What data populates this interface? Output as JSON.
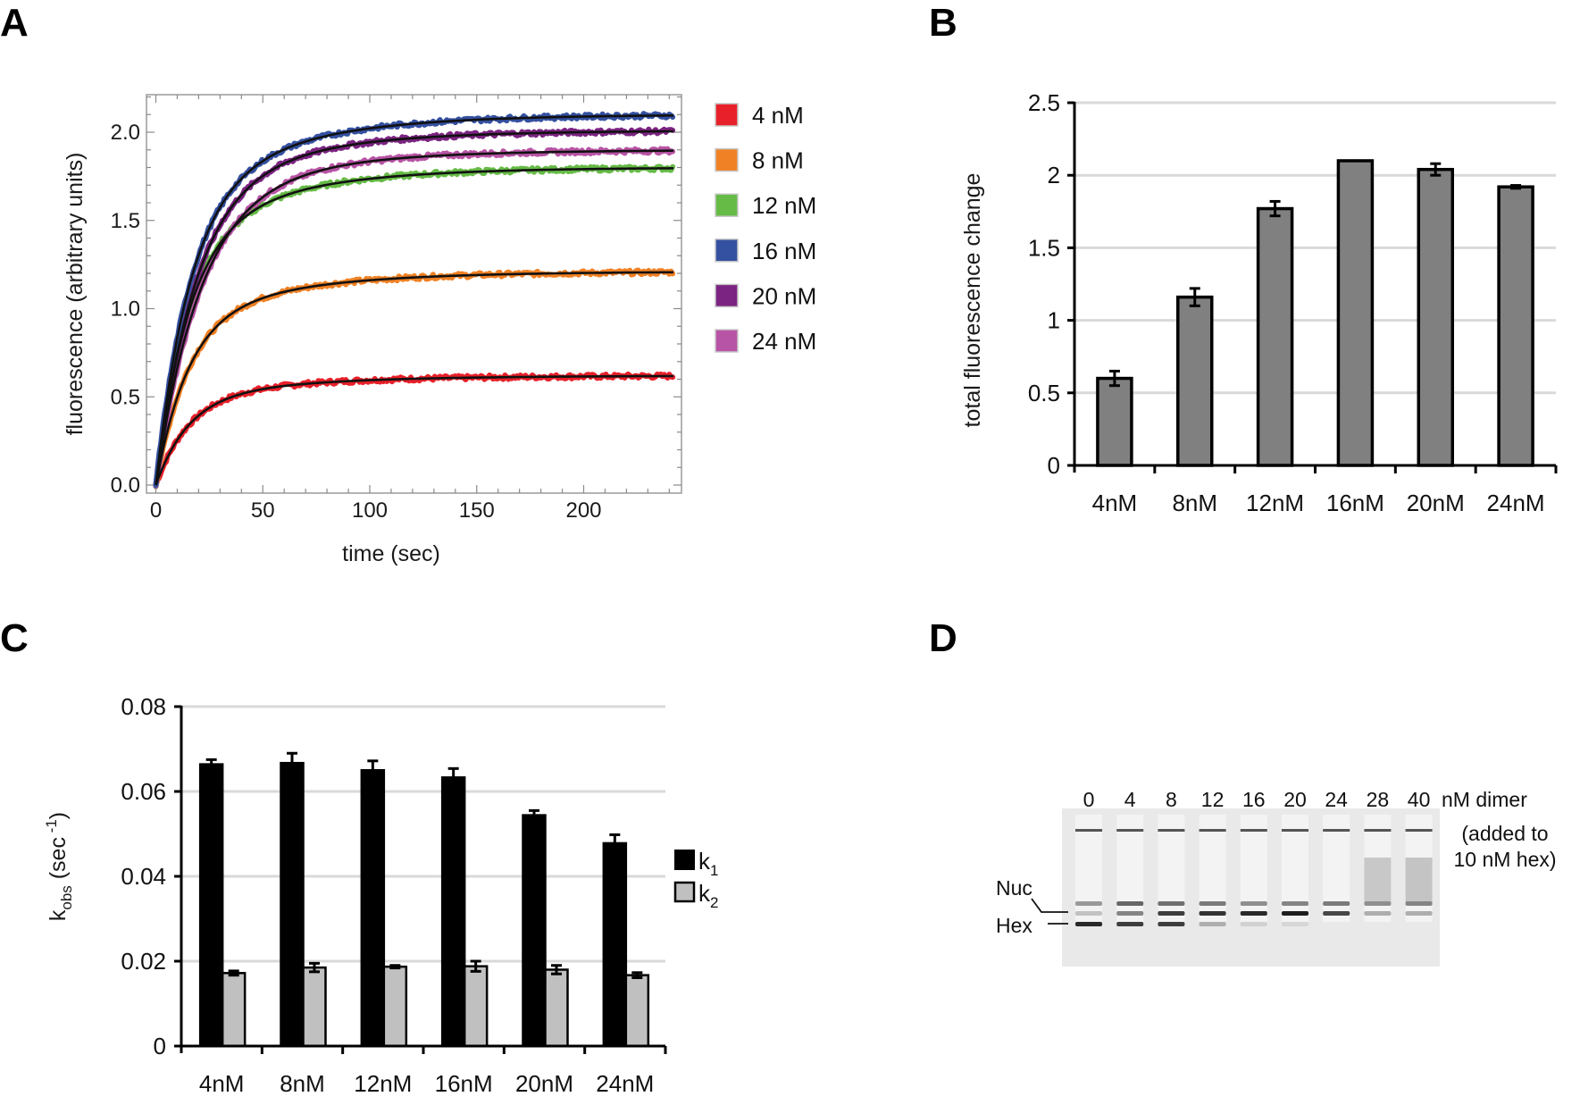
{
  "panels": {
    "A": "A",
    "B": "B",
    "C": "C",
    "D": "D"
  },
  "chart_data": [
    {
      "id": "A",
      "type": "line",
      "title": "",
      "xlabel": "time (sec)",
      "ylabel": "fluorescence (arbitrary units)",
      "xlim": [
        -5,
        246
      ],
      "ylim": [
        -0.05,
        2.21
      ],
      "xticks": [
        0,
        50,
        100,
        150,
        200
      ],
      "xtick_labels": [
        "0",
        "50",
        "100",
        "150",
        "200"
      ],
      "yticks": [
        0.0,
        0.5,
        1.0,
        1.5,
        2.0
      ],
      "ytick_labels": [
        "0.0",
        "0.5",
        "1.0",
        "1.5",
        "2.0"
      ],
      "grid": false,
      "legend_position": "right",
      "fit_line_color": "#111111",
      "series": [
        {
          "name": "4 nM",
          "color": "#e8202a",
          "plateau": 0.62,
          "k1": 0.066,
          "k2": 0.017,
          "amp_fast_fraction": 0.78
        },
        {
          "name": "8 nM",
          "color": "#f08124",
          "plateau": 1.21,
          "k1": 0.067,
          "k2": 0.018,
          "amp_fast_fraction": 0.76
        },
        {
          "name": "12 nM",
          "color": "#66bb46",
          "plateau": 1.8,
          "k1": 0.065,
          "k2": 0.019,
          "amp_fast_fraction": 0.77
        },
        {
          "name": "16 nM",
          "color": "#3450a0",
          "plateau": 2.1,
          "k1": 0.063,
          "k2": 0.019,
          "amp_fast_fraction": 0.76
        },
        {
          "name": "20 nM",
          "color": "#7b2481",
          "plateau": 2.01,
          "k1": 0.054,
          "k2": 0.018,
          "amp_fast_fraction": 0.82
        },
        {
          "name": "24 nM",
          "color": "#b854a5",
          "plateau": 1.9,
          "k1": 0.048,
          "k2": 0.017,
          "amp_fast_fraction": 0.85
        }
      ]
    },
    {
      "id": "B",
      "type": "bar",
      "title": "",
      "xlabel": "",
      "ylabel": "total fluorescence change",
      "ylim": [
        0,
        2.5
      ],
      "yticks": [
        0,
        0.5,
        1,
        1.5,
        2,
        2.5
      ],
      "ytick_labels": [
        "0",
        "0.5",
        "1",
        "1.5",
        "2",
        "2.5"
      ],
      "grid": true,
      "categories": [
        "4nM",
        "8nM",
        "12nM",
        "16nM",
        "20nM",
        "24nM"
      ],
      "values": [
        0.6,
        1.16,
        1.77,
        2.1,
        2.04,
        1.92
      ],
      "errors": [
        0.05,
        0.06,
        0.05,
        0.0,
        0.04,
        0.01
      ],
      "bar_color": "#808080"
    },
    {
      "id": "C",
      "type": "bar",
      "title": "",
      "xlabel": "",
      "ylabel_main": "k",
      "ylabel_sub": "obs",
      "ylabel_rest": " (sec",
      "ylabel_sup": " -1",
      "ylabel_end": ")",
      "ylim": [
        0,
        0.08
      ],
      "yticks": [
        0,
        0.02,
        0.04,
        0.06,
        0.08
      ],
      "ytick_labels": [
        "0",
        "0.02",
        "0.04",
        "0.06",
        "0.08"
      ],
      "grid": true,
      "legend_position": "right",
      "categories": [
        "4nM",
        "8nM",
        "12nM",
        "16nM",
        "20nM",
        "24nM"
      ],
      "series": [
        {
          "name": "k",
          "sub": "1",
          "color": "#000000",
          "values": [
            0.0664,
            0.0667,
            0.065,
            0.0633,
            0.0544,
            0.0478
          ],
          "errors": [
            0.0011,
            0.0023,
            0.0022,
            0.0021,
            0.0011,
            0.002
          ]
        },
        {
          "name": "k",
          "sub": "2",
          "color": "#c0c0c0",
          "values": [
            0.0172,
            0.0185,
            0.0187,
            0.0188,
            0.018,
            0.0167
          ],
          "errors": [
            0.0005,
            0.001,
            0.0003,
            0.0012,
            0.001,
            0.0006
          ]
        }
      ]
    }
  ],
  "gel": {
    "lane_labels": [
      "0",
      "4",
      "8",
      "12",
      "16",
      "20",
      "24",
      "28",
      "40"
    ],
    "unit_label": "nM dimer",
    "note_line1": "(added to",
    "note_line2": "10 nM hex)",
    "band_label_nuc": "Nuc",
    "band_label_hex": "Hex",
    "lanes": [
      {
        "hex": 0.9,
        "mid": 0.15,
        "upper": 0.35,
        "smear": 0.1
      },
      {
        "hex": 0.8,
        "mid": 0.45,
        "upper": 0.6,
        "smear": 0.1
      },
      {
        "hex": 0.8,
        "mid": 0.8,
        "upper": 0.55,
        "smear": 0.1
      },
      {
        "hex": 0.25,
        "mid": 0.85,
        "upper": 0.5,
        "smear": 0.1
      },
      {
        "hex": 0.08,
        "mid": 0.9,
        "upper": 0.4,
        "smear": 0.1
      },
      {
        "hex": 0.05,
        "mid": 0.95,
        "upper": 0.45,
        "smear": 0.1
      },
      {
        "hex": 0.0,
        "mid": 0.75,
        "upper": 0.5,
        "smear": 0.15
      },
      {
        "hex": 0.0,
        "mid": 0.25,
        "upper": 0.4,
        "smear": 0.35
      },
      {
        "hex": 0.0,
        "mid": 0.25,
        "upper": 0.45,
        "smear": 0.4
      }
    ]
  }
}
